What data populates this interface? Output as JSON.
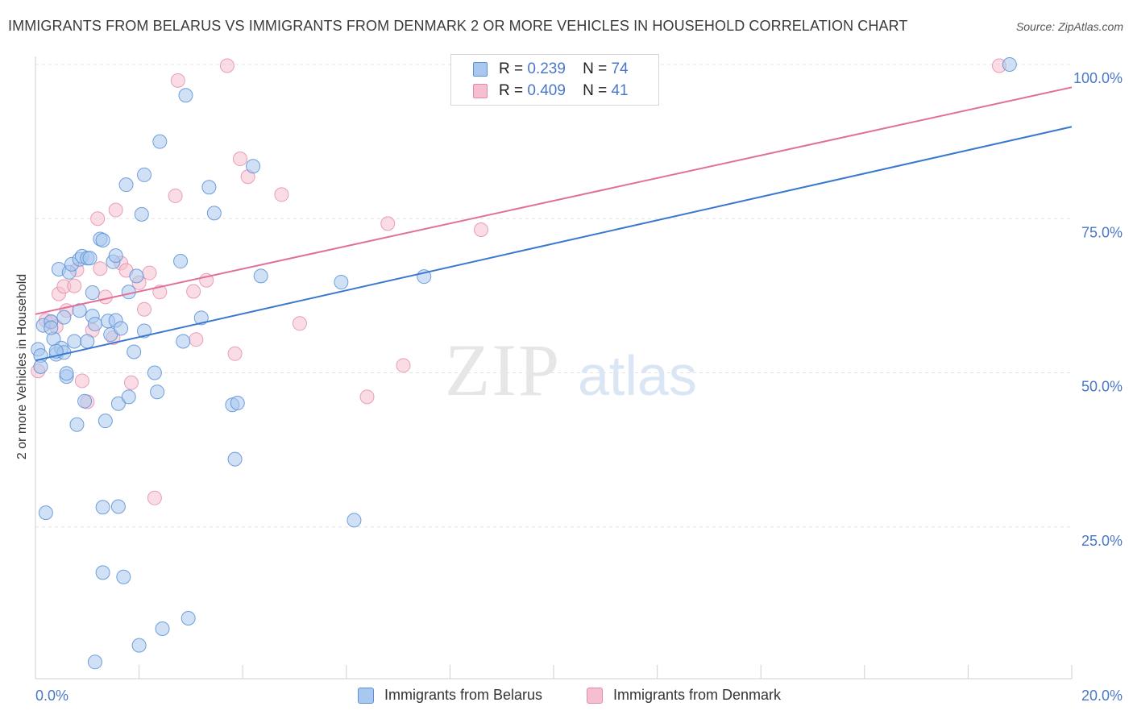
{
  "title": "IMMIGRANTS FROM BELARUS VS IMMIGRANTS FROM DENMARK 2 OR MORE VEHICLES IN HOUSEHOLD CORRELATION CHART",
  "source": "Source: ZipAtlas.com",
  "watermark": {
    "zip": "ZIP",
    "atlas": "atlas"
  },
  "legend": {
    "r_label": "R =",
    "n_label": "N =",
    "belarus": {
      "r": "0.239",
      "n": "74"
    },
    "denmark": {
      "r": "0.409",
      "n": "41"
    }
  },
  "colors": {
    "belarus_fill": "#a9c8ef",
    "belarus_stroke": "#5b8fd6",
    "belarus_line": "#3a78d0",
    "denmark_fill": "#f5bfd0",
    "denmark_stroke": "#e48aa8",
    "denmark_line": "#e0709a",
    "tick_text": "#4a78c8"
  },
  "chart_data": {
    "type": "scatter",
    "title": "IMMIGRANTS FROM BELARUS VS IMMIGRANTS FROM DENMARK 2 OR MORE VEHICLES IN HOUSEHOLD CORRELATION CHART",
    "xlabel": "",
    "ylabel": "2 or more Vehicles in Household",
    "xlim": [
      0,
      20
    ],
    "ylim": [
      0,
      102
    ],
    "x_tick_labels": [
      "0.0%",
      "20.0%"
    ],
    "y_tick_labels": [
      "25.0%",
      "50.0%",
      "75.0%",
      "100.0%"
    ],
    "y_ticks": [
      25,
      50,
      75,
      100
    ],
    "grid": true,
    "legend_position": "top-center",
    "series": [
      {
        "name": "Immigrants from Belarus",
        "r": 0.239,
        "n": 74,
        "trend": {
          "x": [
            0,
            20
          ],
          "y": [
            52.0,
            89.9
          ]
        },
        "points": [
          [
            0.05,
            53.8
          ],
          [
            0.1,
            52.8
          ],
          [
            0.1,
            51.0
          ],
          [
            0.15,
            57.7
          ],
          [
            0.2,
            27.3
          ],
          [
            0.3,
            58.3
          ],
          [
            0.35,
            55.5
          ],
          [
            0.4,
            53.0
          ],
          [
            0.45,
            66.8
          ],
          [
            0.5,
            54.0
          ],
          [
            0.55,
            59.0
          ],
          [
            0.6,
            49.4
          ],
          [
            0.65,
            66.3
          ],
          [
            0.7,
            67.6
          ],
          [
            0.75,
            55.1
          ],
          [
            0.8,
            41.6
          ],
          [
            0.85,
            68.4
          ],
          [
            0.85,
            60.1
          ],
          [
            0.9,
            68.9
          ],
          [
            0.95,
            45.4
          ],
          [
            1.0,
            55.1
          ],
          [
            1.0,
            68.6
          ],
          [
            1.05,
            68.6
          ],
          [
            1.1,
            63.0
          ],
          [
            1.1,
            59.2
          ],
          [
            1.15,
            57.9
          ],
          [
            1.25,
            71.7
          ],
          [
            1.3,
            71.5
          ],
          [
            1.3,
            28.2
          ],
          [
            1.3,
            17.6
          ],
          [
            1.35,
            42.2
          ],
          [
            1.4,
            58.4
          ],
          [
            1.45,
            56.2
          ],
          [
            1.5,
            68.0
          ],
          [
            1.55,
            58.5
          ],
          [
            1.55,
            69.0
          ],
          [
            1.6,
            45.0
          ],
          [
            1.6,
            28.3
          ],
          [
            1.65,
            57.2
          ],
          [
            1.7,
            16.9
          ],
          [
            1.75,
            80.5
          ],
          [
            1.8,
            46.1
          ],
          [
            1.8,
            63.1
          ],
          [
            1.9,
            53.4
          ],
          [
            1.95,
            65.7
          ],
          [
            2.0,
            5.8
          ],
          [
            2.05,
            75.7
          ],
          [
            2.1,
            82.1
          ],
          [
            2.1,
            56.8
          ],
          [
            2.3,
            50.0
          ],
          [
            2.35,
            46.9
          ],
          [
            2.4,
            87.5
          ],
          [
            2.45,
            8.5
          ],
          [
            2.8,
            68.1
          ],
          [
            2.85,
            55.1
          ],
          [
            2.9,
            95.0
          ],
          [
            2.95,
            10.2
          ],
          [
            3.2,
            58.9
          ],
          [
            3.35,
            80.1
          ],
          [
            3.45,
            75.9
          ],
          [
            3.8,
            44.8
          ],
          [
            3.85,
            36.0
          ],
          [
            3.9,
            45.1
          ],
          [
            4.2,
            83.5
          ],
          [
            4.35,
            65.7
          ],
          [
            5.9,
            64.7
          ],
          [
            6.15,
            26.1
          ],
          [
            7.5,
            65.6
          ],
          [
            18.8,
            100.0
          ],
          [
            1.15,
            3.1
          ],
          [
            0.3,
            57.3
          ],
          [
            0.55,
            53.3
          ],
          [
            0.4,
            53.5
          ],
          [
            0.6,
            49.9
          ]
        ]
      },
      {
        "name": "Immigrants from Denmark",
        "r": 0.409,
        "n": 41,
        "trend": {
          "x": [
            0,
            20
          ],
          "y": [
            59.5,
            96.3
          ]
        },
        "points": [
          [
            0.05,
            50.3
          ],
          [
            0.2,
            58.5
          ],
          [
            0.3,
            58.2
          ],
          [
            0.4,
            57.5
          ],
          [
            0.45,
            62.8
          ],
          [
            0.55,
            64.0
          ],
          [
            0.6,
            60.1
          ],
          [
            0.75,
            64.1
          ],
          [
            0.8,
            66.7
          ],
          [
            0.9,
            48.7
          ],
          [
            1.0,
            45.3
          ],
          [
            1.1,
            56.9
          ],
          [
            1.2,
            75.0
          ],
          [
            1.25,
            66.9
          ],
          [
            1.35,
            62.3
          ],
          [
            1.5,
            55.7
          ],
          [
            1.55,
            76.4
          ],
          [
            1.65,
            67.8
          ],
          [
            1.75,
            66.6
          ],
          [
            1.85,
            48.4
          ],
          [
            2.0,
            64.6
          ],
          [
            2.1,
            60.3
          ],
          [
            2.2,
            66.2
          ],
          [
            2.3,
            29.7
          ],
          [
            2.4,
            63.1
          ],
          [
            2.7,
            78.7
          ],
          [
            2.75,
            97.4
          ],
          [
            3.05,
            63.2
          ],
          [
            3.1,
            55.4
          ],
          [
            3.3,
            65.0
          ],
          [
            3.7,
            99.8
          ],
          [
            3.85,
            53.1
          ],
          [
            3.95,
            84.7
          ],
          [
            4.1,
            81.8
          ],
          [
            4.75,
            78.9
          ],
          [
            5.1,
            58.0
          ],
          [
            6.4,
            46.1
          ],
          [
            6.8,
            74.2
          ],
          [
            7.1,
            51.2
          ],
          [
            8.6,
            73.2
          ],
          [
            18.6,
            99.8
          ]
        ]
      }
    ]
  },
  "bottom_legend": {
    "belarus": "Immigrants from Belarus",
    "denmark": "Immigrants from Denmark"
  }
}
